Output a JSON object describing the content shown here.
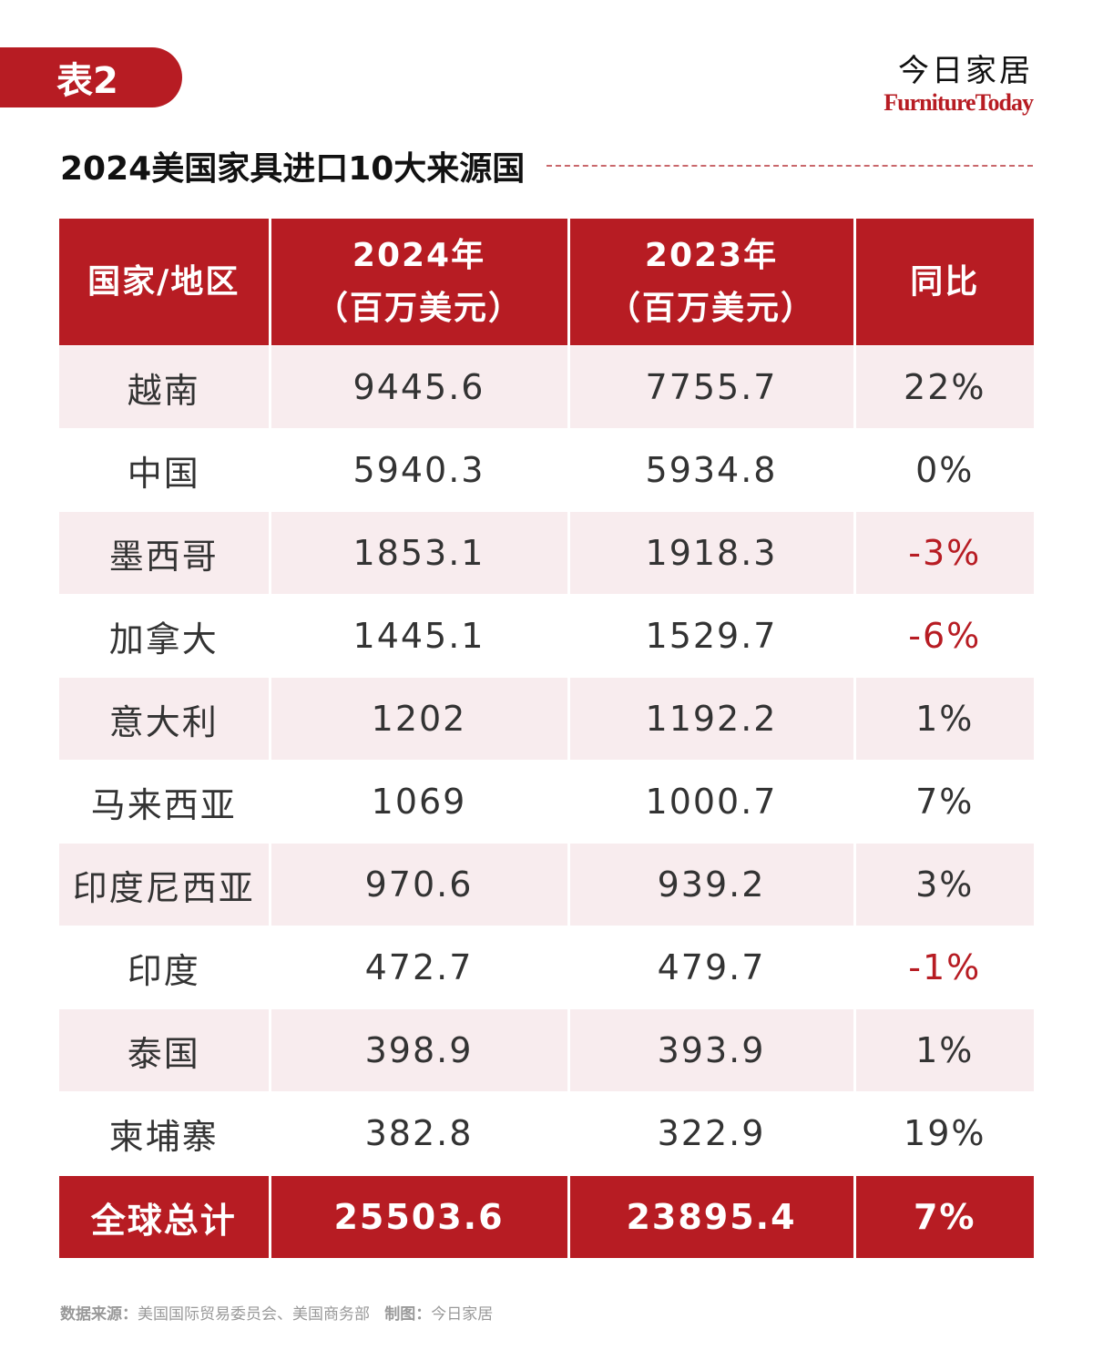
{
  "tag": "表2",
  "brand": {
    "cn": "今日家居",
    "en": "FurnitureToday"
  },
  "title": "2024美国家具进口10大来源国",
  "table": {
    "headers": [
      "国家/地区",
      "2024年",
      "（百万美元）",
      "2023年",
      "（百万美元）",
      "同比"
    ],
    "rows": [
      {
        "country": "越南",
        "y2024": "9445.6",
        "y2023": "7755.7",
        "yoy": "22%"
      },
      {
        "country": "中国",
        "y2024": "5940.3",
        "y2023": "5934.8",
        "yoy": "0%"
      },
      {
        "country": "墨西哥",
        "y2024": "1853.1",
        "y2023": "1918.3",
        "yoy": "-3%"
      },
      {
        "country": "加拿大",
        "y2024": "1445.1",
        "y2023": "1529.7",
        "yoy": "-6%"
      },
      {
        "country": "意大利",
        "y2024": "1202",
        "y2023": "1192.2",
        "yoy": "1%"
      },
      {
        "country": "马来西亚",
        "y2024": "1069",
        "y2023": "1000.7",
        "yoy": "7%"
      },
      {
        "country": "印度尼西亚",
        "y2024": "970.6",
        "y2023": "939.2",
        "yoy": "3%"
      },
      {
        "country": "印度",
        "y2024": "472.7",
        "y2023": "479.7",
        "yoy": "-1%"
      },
      {
        "country": "泰国",
        "y2024": "398.9",
        "y2023": "393.9",
        "yoy": "1%"
      },
      {
        "country": "柬埔寨",
        "y2024": "382.8",
        "y2023": "322.9",
        "yoy": "19%"
      }
    ],
    "total": {
      "country": "全球总计",
      "y2024": "25503.6",
      "y2023": "23895.4",
      "yoy": "7%"
    }
  },
  "footer": {
    "source_label": "数据来源：",
    "source_text": "美国国际贸易委员会、美国商务部",
    "made_label": "制图：",
    "made_text": "今日家居"
  },
  "colors": {
    "accent": "#b71c23",
    "row_tint": "#f8ecee"
  }
}
